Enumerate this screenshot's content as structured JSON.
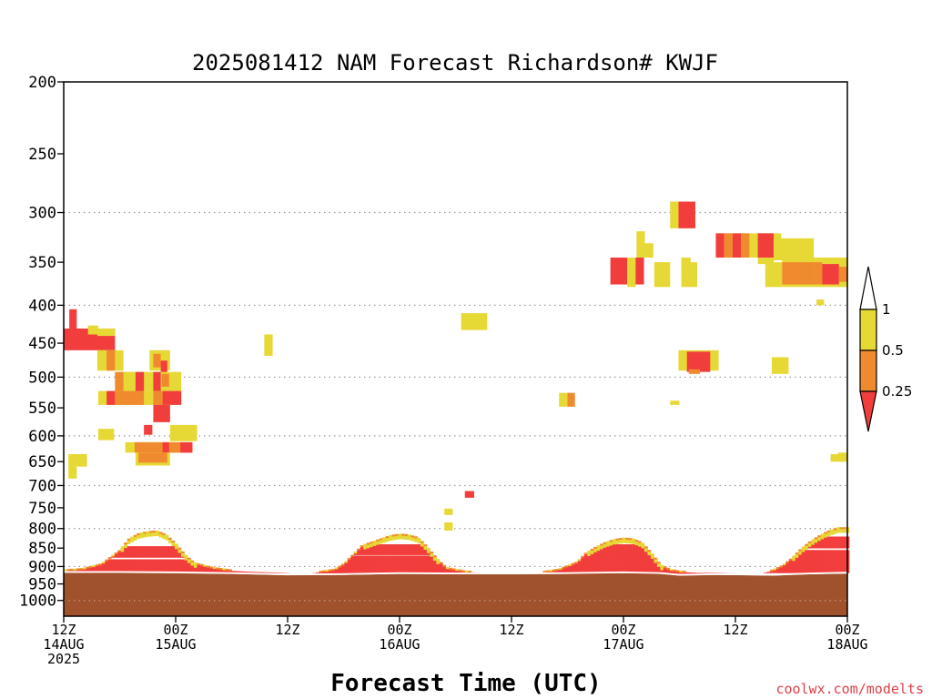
{
  "chart_data": {
    "type": "heatmap",
    "title": "2025081412 NAM Forecast Richardson# KWJF",
    "xlabel": "Forecast Time (UTC)",
    "ylabel": "",
    "credit": "coolwx.com/modelts",
    "y_scale": "log-pressure (hPa), inverted",
    "ylim": [
      1050,
      200
    ],
    "y_ticks": [
      200,
      250,
      300,
      350,
      400,
      450,
      500,
      550,
      600,
      650,
      700,
      750,
      800,
      850,
      900,
      950,
      1000
    ],
    "y_tick_labels": [
      "200",
      "250",
      "300",
      "350",
      "400",
      "450",
      "500",
      "550",
      "600",
      "650",
      "700",
      "750",
      "800",
      "850",
      "900",
      "950",
      "1000"
    ],
    "y_gridlines_dotted": [
      300,
      400,
      500,
      600,
      700,
      800,
      900,
      1000
    ],
    "xlim": [
      0,
      84
    ],
    "x_unit": "forecast hour",
    "x_ticks": [
      {
        "hour": 0,
        "lines": [
          "12Z",
          "14AUG",
          "2025"
        ]
      },
      {
        "hour": 12,
        "lines": [
          "00Z",
          "15AUG"
        ]
      },
      {
        "hour": 24,
        "lines": [
          "12Z"
        ]
      },
      {
        "hour": 36,
        "lines": [
          "00Z",
          "16AUG"
        ]
      },
      {
        "hour": 48,
        "lines": [
          "12Z"
        ]
      },
      {
        "hour": 60,
        "lines": [
          "00Z",
          "17AUG"
        ]
      },
      {
        "hour": 72,
        "lines": [
          "12Z"
        ]
      },
      {
        "hour": 84,
        "lines": [
          "00Z",
          "18AUG"
        ]
      }
    ],
    "legend": {
      "placement": "right",
      "labels": [
        "1",
        "0.5",
        "0.25"
      ],
      "classes": [
        {
          "name": "0.5-1",
          "color": "#e6d835"
        },
        {
          "name": "0.25-0.5",
          "color": "#f08a2e"
        },
        {
          "name": "<0.25",
          "color": "#f23d3d"
        }
      ],
      "top_arrow_color": "#ffffff"
    },
    "ground_color": "#a0522d",
    "ground_top_pressure_by_hour": [
      [
        0,
        918
      ],
      [
        6,
        918
      ],
      [
        12,
        919
      ],
      [
        18,
        921
      ],
      [
        24,
        925
      ],
      [
        30,
        924
      ],
      [
        36,
        921
      ],
      [
        42,
        922
      ],
      [
        48,
        922
      ],
      [
        54,
        921
      ],
      [
        60,
        919
      ],
      [
        64,
        921
      ],
      [
        66,
        926
      ],
      [
        70,
        924
      ],
      [
        76,
        926
      ],
      [
        80,
        922
      ],
      [
        84,
        920
      ]
    ],
    "cells": [
      {
        "h0": 0.0,
        "h1": 5.5,
        "p0": 430,
        "p1": 460,
        "cls": "<0.25"
      },
      {
        "h0": 0.6,
        "h1": 1.4,
        "p0": 405,
        "p1": 432,
        "cls": "<0.25"
      },
      {
        "h0": 2.6,
        "h1": 3.7,
        "p0": 426,
        "p1": 438,
        "cls": "0.5-1"
      },
      {
        "h0": 3.6,
        "h1": 5.5,
        "p0": 430,
        "p1": 440,
        "cls": "0.5-1"
      },
      {
        "h0": 3.6,
        "h1": 6.4,
        "p0": 460,
        "p1": 490,
        "cls": "0.5-1"
      },
      {
        "h0": 4.6,
        "h1": 5.5,
        "p0": 460,
        "p1": 490,
        "cls": "0.25-0.5"
      },
      {
        "h0": 9.2,
        "h1": 11.4,
        "p0": 460,
        "p1": 490,
        "cls": "0.5-1"
      },
      {
        "h0": 9.6,
        "h1": 10.4,
        "p0": 465,
        "p1": 485,
        "cls": "0.25-0.5"
      },
      {
        "h0": 10.4,
        "h1": 11.1,
        "p0": 475,
        "p1": 493,
        "cls": "<0.25"
      },
      {
        "h0": 5.5,
        "h1": 12.6,
        "p0": 492,
        "p1": 522,
        "cls": "0.5-1"
      },
      {
        "h0": 5.5,
        "h1": 6.4,
        "p0": 492,
        "p1": 522,
        "cls": "0.25-0.5"
      },
      {
        "h0": 7.7,
        "h1": 8.6,
        "p0": 492,
        "p1": 522,
        "cls": "<0.25"
      },
      {
        "h0": 9.6,
        "h1": 10.4,
        "p0": 492,
        "p1": 522,
        "cls": "<0.25"
      },
      {
        "h0": 10.5,
        "h1": 11.3,
        "p0": 495,
        "p1": 515,
        "cls": "0.25-0.5"
      },
      {
        "h0": 3.7,
        "h1": 12.6,
        "p0": 522,
        "p1": 545,
        "cls": "0.5-1"
      },
      {
        "h0": 4.6,
        "h1": 5.5,
        "p0": 522,
        "p1": 545,
        "cls": "<0.25"
      },
      {
        "h0": 5.5,
        "h1": 8.6,
        "p0": 522,
        "p1": 545,
        "cls": "0.25-0.5"
      },
      {
        "h0": 9.6,
        "h1": 10.6,
        "p0": 522,
        "p1": 545,
        "cls": "0.25-0.5"
      },
      {
        "h0": 10.6,
        "h1": 12.6,
        "p0": 522,
        "p1": 545,
        "cls": "<0.25"
      },
      {
        "h0": 9.6,
        "h1": 11.4,
        "p0": 545,
        "p1": 575,
        "cls": "<0.25"
      },
      {
        "h0": 3.7,
        "h1": 5.4,
        "p0": 587,
        "p1": 608,
        "cls": "0.5-1"
      },
      {
        "h0": 8.6,
        "h1": 9.5,
        "p0": 580,
        "p1": 598,
        "cls": "<0.25"
      },
      {
        "h0": 11.4,
        "h1": 14.3,
        "p0": 580,
        "p1": 610,
        "cls": "0.5-1"
      },
      {
        "h0": 6.6,
        "h1": 13.8,
        "p0": 612,
        "p1": 632,
        "cls": "0.5-1"
      },
      {
        "h0": 7.6,
        "h1": 13.8,
        "p0": 612,
        "p1": 632,
        "cls": "0.25-0.5"
      },
      {
        "h0": 10.6,
        "h1": 11.3,
        "p0": 612,
        "p1": 632,
        "cls": "<0.25"
      },
      {
        "h0": 12.5,
        "h1": 13.8,
        "p0": 612,
        "p1": 632,
        "cls": "<0.25"
      },
      {
        "h0": 7.7,
        "h1": 11.4,
        "p0": 632,
        "p1": 658,
        "cls": "0.5-1"
      },
      {
        "h0": 8.0,
        "h1": 11.1,
        "p0": 632,
        "p1": 652,
        "cls": "0.25-0.5"
      },
      {
        "h0": 0.5,
        "h1": 2.5,
        "p0": 635,
        "p1": 660,
        "cls": "0.5-1"
      },
      {
        "h0": 0.5,
        "h1": 1.4,
        "p0": 660,
        "p1": 685,
        "cls": "0.5-1"
      },
      {
        "h0": 21.5,
        "h1": 22.4,
        "p0": 438,
        "p1": 468,
        "cls": "0.5-1"
      },
      {
        "h0": 42.6,
        "h1": 45.4,
        "p0": 410,
        "p1": 432,
        "cls": "0.5-1"
      },
      {
        "h0": 53.1,
        "h1": 54.0,
        "p0": 525,
        "p1": 548,
        "cls": "0.5-1"
      },
      {
        "h0": 54.0,
        "h1": 54.8,
        "p0": 525,
        "p1": 548,
        "cls": "0.25-0.5"
      },
      {
        "h0": 43.0,
        "h1": 44.0,
        "p0": 712,
        "p1": 727,
        "cls": "<0.25"
      },
      {
        "h0": 40.8,
        "h1": 41.7,
        "p0": 752,
        "p1": 767,
        "cls": "0.5-1"
      },
      {
        "h0": 40.8,
        "h1": 41.7,
        "p0": 785,
        "p1": 805,
        "cls": "0.5-1"
      },
      {
        "h0": 65.0,
        "h1": 67.7,
        "p0": 290,
        "p1": 315,
        "cls": "0.5-1"
      },
      {
        "h0": 65.9,
        "h1": 67.7,
        "p0": 290,
        "p1": 315,
        "cls": "<0.25"
      },
      {
        "h0": 61.4,
        "h1": 62.3,
        "p0": 318,
        "p1": 345,
        "cls": "0.5-1"
      },
      {
        "h0": 62.3,
        "h1": 63.2,
        "p0": 330,
        "p1": 345,
        "cls": "0.5-1"
      },
      {
        "h0": 58.6,
        "h1": 60.4,
        "p0": 345,
        "p1": 375,
        "cls": "<0.25"
      },
      {
        "h0": 60.4,
        "h1": 61.3,
        "p0": 345,
        "p1": 378,
        "cls": "0.5-1"
      },
      {
        "h0": 61.3,
        "h1": 62.2,
        "p0": 345,
        "p1": 375,
        "cls": "<0.25"
      },
      {
        "h0": 63.3,
        "h1": 65.0,
        "p0": 350,
        "p1": 378,
        "cls": "0.5-1"
      },
      {
        "h0": 66.2,
        "h1": 67.9,
        "p0": 350,
        "p1": 378,
        "cls": "0.5-1"
      },
      {
        "h0": 66.2,
        "h1": 67.2,
        "p0": 345,
        "p1": 355,
        "cls": "0.5-1"
      },
      {
        "h0": 69.9,
        "h1": 76.9,
        "p0": 320,
        "p1": 345,
        "cls": "0.5-1"
      },
      {
        "h0": 69.9,
        "h1": 70.8,
        "p0": 320,
        "p1": 345,
        "cls": "<0.25"
      },
      {
        "h0": 70.8,
        "h1": 71.7,
        "p0": 320,
        "p1": 345,
        "cls": "0.25-0.5"
      },
      {
        "h0": 71.7,
        "h1": 72.6,
        "p0": 320,
        "p1": 345,
        "cls": "<0.25"
      },
      {
        "h0": 72.6,
        "h1": 73.5,
        "p0": 320,
        "p1": 345,
        "cls": "0.25-0.5"
      },
      {
        "h0": 74.4,
        "h1": 76.1,
        "p0": 320,
        "p1": 345,
        "cls": "<0.25"
      },
      {
        "h0": 76.1,
        "h1": 80.4,
        "p0": 325,
        "p1": 348,
        "cls": "0.5-1"
      },
      {
        "h0": 74.4,
        "h1": 76.1,
        "p0": 345,
        "p1": 352,
        "cls": "0.5-1"
      },
      {
        "h0": 75.2,
        "h1": 77.0,
        "p0": 350,
        "p1": 378,
        "cls": "0.5-1"
      },
      {
        "h0": 77.0,
        "h1": 84.0,
        "p0": 345,
        "p1": 378,
        "cls": "0.5-1"
      },
      {
        "h0": 77.0,
        "h1": 80.4,
        "p0": 350,
        "p1": 375,
        "cls": "0.25-0.5"
      },
      {
        "h0": 80.4,
        "h1": 81.3,
        "p0": 350,
        "p1": 375,
        "cls": "0.25-0.5"
      },
      {
        "h0": 81.3,
        "h1": 83.1,
        "p0": 352,
        "p1": 375,
        "cls": "<0.25"
      },
      {
        "h0": 83.1,
        "h1": 84.0,
        "p0": 355,
        "p1": 372,
        "cls": "0.25-0.5"
      },
      {
        "h0": 80.7,
        "h1": 81.5,
        "p0": 393,
        "p1": 400,
        "cls": "0.5-1"
      },
      {
        "h0": 65.9,
        "h1": 70.2,
        "p0": 460,
        "p1": 490,
        "cls": "0.5-1"
      },
      {
        "h0": 66.8,
        "h1": 69.3,
        "p0": 462,
        "p1": 492,
        "cls": "<0.25"
      },
      {
        "h0": 67.0,
        "h1": 68.2,
        "p0": 488,
        "p1": 495,
        "cls": "0.25-0.5"
      },
      {
        "h0": 75.9,
        "h1": 77.7,
        "p0": 470,
        "p1": 495,
        "cls": "0.5-1"
      },
      {
        "h0": 65.0,
        "h1": 66.0,
        "p0": 538,
        "p1": 545,
        "cls": "0.5-1"
      },
      {
        "h0": 82.2,
        "h1": 84.0,
        "p0": 635,
        "p1": 650,
        "cls": "0.5-1"
      },
      {
        "h0": 83.0,
        "h1": 84.0,
        "p0": 632,
        "p1": 650,
        "cls": "0.5-1"
      }
    ],
    "profiles": [
      {
        "h0": 0,
        "h1": 24,
        "peak_h": 10,
        "bottom": 918,
        "top_y": [
          [
            0,
            912
          ],
          [
            2,
            908
          ],
          [
            4,
            895
          ],
          [
            6,
            858
          ],
          [
            7,
            828
          ],
          [
            8,
            815
          ],
          [
            9,
            810
          ],
          [
            10,
            808
          ],
          [
            11,
            818
          ],
          [
            12,
            840
          ],
          [
            13,
            870
          ],
          [
            14,
            892
          ],
          [
            16,
            905
          ],
          [
            18,
            912
          ],
          [
            20,
            915
          ],
          [
            24,
            918
          ]
        ],
        "layers": [
          [
            845,
            875,
            "<0.25"
          ],
          [
            880,
            905,
            "<0.25"
          ],
          [
            815,
            835,
            "0.5-1"
          ],
          [
            905,
            918,
            "<0.25"
          ]
        ]
      },
      {
        "h0": 26,
        "h1": 48,
        "peak_h": 36,
        "bottom": 922,
        "top_y": [
          [
            26,
            922
          ],
          [
            27,
            918
          ],
          [
            29,
            910
          ],
          [
            30,
            895
          ],
          [
            31,
            870
          ],
          [
            32,
            845
          ],
          [
            34,
            828
          ],
          [
            35,
            820
          ],
          [
            36,
            816
          ],
          [
            37,
            818
          ],
          [
            38,
            825
          ],
          [
            39,
            850
          ],
          [
            40,
            880
          ],
          [
            41,
            905
          ],
          [
            43,
            915
          ],
          [
            45,
            918
          ],
          [
            48,
            922
          ]
        ],
        "layers": [
          [
            840,
            868,
            "<0.25"
          ],
          [
            870,
            905,
            "<0.25"
          ],
          [
            905,
            920,
            "<0.25"
          ],
          [
            820,
            835,
            "0.5-1"
          ]
        ]
      },
      {
        "h0": 50,
        "h1": 72,
        "peak_h": 60,
        "bottom": 922,
        "top_y": [
          [
            50,
            922
          ],
          [
            51,
            918
          ],
          [
            53,
            910
          ],
          [
            55,
            890
          ],
          [
            56,
            865
          ],
          [
            57,
            850
          ],
          [
            58,
            838
          ],
          [
            59,
            830
          ],
          [
            60,
            826
          ],
          [
            61,
            828
          ],
          [
            62,
            838
          ],
          [
            63,
            865
          ],
          [
            64,
            898
          ],
          [
            65,
            910
          ],
          [
            66,
            915
          ],
          [
            68,
            918
          ],
          [
            70,
            918
          ],
          [
            72,
            920
          ]
        ],
        "layers": [
          [
            840,
            870,
            "<0.25"
          ],
          [
            870,
            905,
            "<0.25"
          ],
          [
            905,
            920,
            "<0.25"
          ],
          [
            825,
            838,
            "0.5-1"
          ]
        ]
      },
      {
        "h0": 74,
        "h1": 84,
        "peak_h": 82,
        "bottom": 920,
        "top_y": [
          [
            74,
            922
          ],
          [
            75,
            918
          ],
          [
            76,
            912
          ],
          [
            77,
            900
          ],
          [
            78,
            880
          ],
          [
            79,
            855
          ],
          [
            80,
            835
          ],
          [
            81,
            820
          ],
          [
            82,
            808
          ],
          [
            83,
            800
          ],
          [
            84,
            800
          ]
        ],
        "layers": [
          [
            820,
            850,
            "<0.25"
          ],
          [
            855,
            880,
            "<0.25"
          ],
          [
            880,
            905,
            "<0.25"
          ],
          [
            905,
            918,
            "<0.25"
          ],
          [
            785,
            800,
            "0.5-1"
          ]
        ]
      }
    ]
  }
}
